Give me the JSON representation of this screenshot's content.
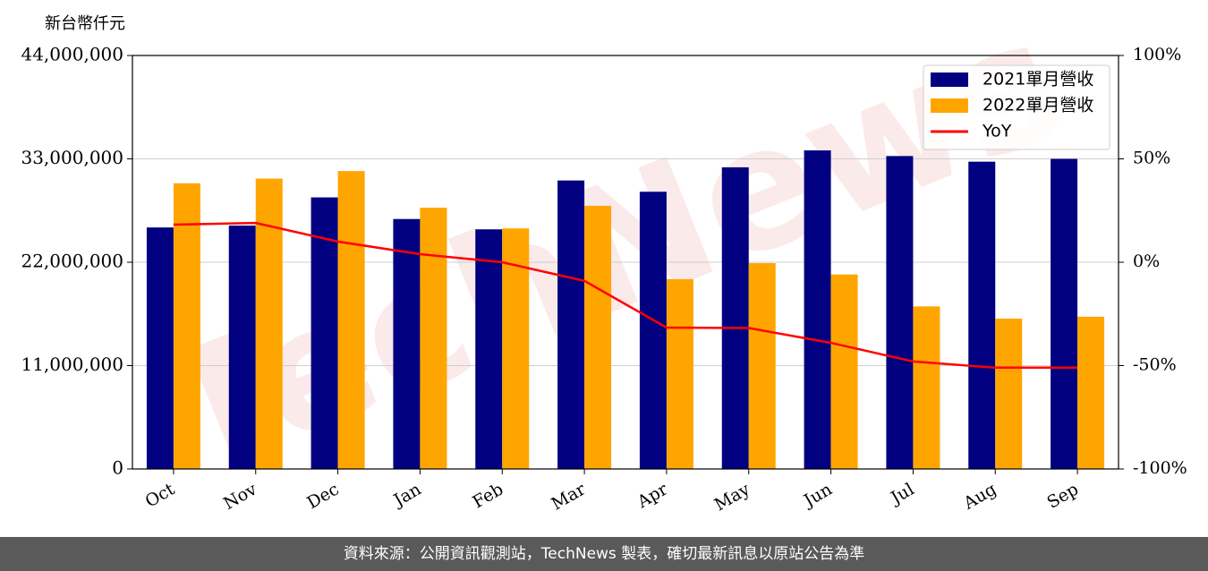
{
  "chart_data": {
    "type": "bar",
    "y_label": "新台幣仟元",
    "watermark": "TechNews",
    "footer": "資料來源：公開資訊觀測站，TechNews 製表，確切最新訊息以原站公告為準",
    "categories": [
      "Oct",
      "Nov",
      "Dec",
      "Jan",
      "Feb",
      "Mar",
      "Apr",
      "May",
      "Jun",
      "Jul",
      "Aug",
      "Sep"
    ],
    "series": [
      {
        "name": "2021單月營收",
        "color": "#000080",
        "values": [
          25700000,
          25900000,
          28900000,
          26600000,
          25500000,
          30700000,
          29500000,
          32100000,
          33900000,
          33300000,
          32700000,
          33000000
        ]
      },
      {
        "name": "2022單月營收",
        "color": "#ffa500",
        "values": [
          30400000,
          30900000,
          31700000,
          27800000,
          25600000,
          28000000,
          20200000,
          21900000,
          20700000,
          17300000,
          16000000,
          16200000
        ]
      },
      {
        "name": "YoY",
        "color": "#ff0000",
        "type": "line",
        "axis": "y2",
        "values": [
          18.2,
          19,
          10,
          3.9,
          0,
          -9,
          -31.6,
          -31.8,
          -39,
          -48,
          -51,
          -51
        ]
      }
    ],
    "ylim": [
      0,
      44000000
    ],
    "yticks": [
      0,
      {
        "value": 11000000,
        "label": "11,000,000"
      },
      {
        "value": 22000000,
        "label": "22,000,000"
      },
      {
        "value": 33000000,
        "label": "33,000,000"
      },
      {
        "value": 44000000,
        "label": "44,000,000"
      }
    ],
    "y2lim": [
      -100,
      100
    ],
    "y2ticks": [
      {
        "value": -100,
        "label": "-100%"
      },
      {
        "value": -50,
        "label": "-50%"
      },
      {
        "value": 0,
        "label": "0%"
      },
      {
        "value": 50,
        "label": "50%"
      },
      {
        "value": 100,
        "label": "100%"
      }
    ],
    "grid": true,
    "legend": "upper right"
  }
}
